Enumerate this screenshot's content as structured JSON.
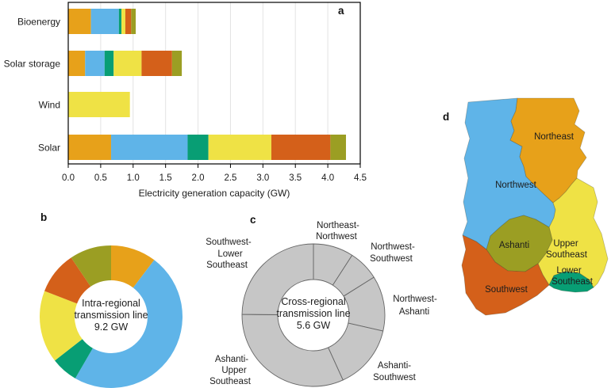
{
  "figure": {
    "background": "#ffffff",
    "panel_labels": {
      "a": "a",
      "b": "b",
      "c": "c",
      "d": "d"
    }
  },
  "palette": {
    "Northeast": "#E7A11A",
    "Northwest": "#5FB4E8",
    "Ashanti": "#9B9E23",
    "Upper Southeast": "#EFE245",
    "Lower Southeast": "#089E74",
    "Southwest": "#D4601A",
    "cross_regional_fill": "#C6C6C6",
    "cross_regional_border": "#666666"
  },
  "chart_data": [
    {
      "id": "a",
      "type": "bar",
      "orientation": "horizontal",
      "stacked": true,
      "categories": [
        "Bioenergy",
        "Solar storage",
        "Wind",
        "Solar"
      ],
      "series": [
        {
          "name": "Northeast",
          "color": "#E7A11A",
          "values": [
            0.35,
            0.26,
            0,
            0.66
          ]
        },
        {
          "name": "Northwest",
          "color": "#5FB4E8",
          "values": [
            0.43,
            0.3,
            0,
            1.18
          ]
        },
        {
          "name": "Lower Southeast",
          "color": "#089E74",
          "values": [
            0.04,
            0.14,
            0,
            0.32
          ]
        },
        {
          "name": "Upper Southeast",
          "color": "#EFE245",
          "values": [
            0.06,
            0.43,
            0.95,
            0.97
          ]
        },
        {
          "name": "Southwest",
          "color": "#D4601A",
          "values": [
            0.09,
            0.47,
            0,
            0.91
          ]
        },
        {
          "name": "Ashanti",
          "color": "#9B9E23",
          "values": [
            0.07,
            0.15,
            0,
            0.24
          ]
        }
      ],
      "category_totals_gw": [
        1.04,
        1.75,
        0.95,
        4.28
      ],
      "xlabel": "Electricity generation capacity (GW)",
      "xlim": [
        0,
        4.5
      ],
      "xticks": [
        "0.0",
        "0.5",
        "1.0",
        "1.5",
        "2.0",
        "2.5",
        "3.0",
        "3.5",
        "4.0",
        "4.5"
      ],
      "grid": true,
      "legend": "none"
    },
    {
      "id": "b",
      "type": "pie",
      "donut": true,
      "center_label": "Intra-regional transmission line 9.2 GW",
      "center_label_lines": [
        "Intra-regional",
        "transmission line",
        "9.2 GW"
      ],
      "total_gw": 9.2,
      "segments": [
        {
          "name": "Northeast",
          "color": "#E7A11A",
          "value_gw": 0.95
        },
        {
          "name": "Northwest",
          "color": "#5FB4E8",
          "value_gw": 4.42
        },
        {
          "name": "Lower Southeast",
          "color": "#089E74",
          "value_gw": 0.56
        },
        {
          "name": "Upper Southeast",
          "color": "#EFE245",
          "value_gw": 1.51
        },
        {
          "name": "Southwest",
          "color": "#D4601A",
          "value_gw": 0.89
        },
        {
          "name": "Ashanti",
          "color": "#9B9E23",
          "value_gw": 0.87
        }
      ]
    },
    {
      "id": "c",
      "type": "pie",
      "donut": true,
      "center_label": "Cross-regional transmission line 5.6 GW",
      "center_label_lines": [
        "Cross-regional",
        "transmission line",
        "5.6 GW"
      ],
      "total_gw": 5.6,
      "segments": [
        {
          "label": "Northeast-Northwest",
          "label_lines": [
            "Northeast-",
            "Northwest"
          ],
          "value_gw": 0.51
        },
        {
          "label": "Northwest-Southwest",
          "label_lines": [
            "Northwest-",
            "Southwest"
          ],
          "value_gw": 0.39
        },
        {
          "label": "Northwest-Ashanti",
          "label_lines": [
            "Northwest-",
            "Ashanti"
          ],
          "value_gw": 0.7
        },
        {
          "label": "Ashanti-Southwest",
          "label_lines": [
            "Ashanti-",
            "Southwest"
          ],
          "value_gw": 0.82
        },
        {
          "label": "Ashanti-Upper Southeast",
          "label_lines": [
            "Ashanti-",
            "Upper",
            "Southeast"
          ],
          "value_gw": 1.79
        },
        {
          "label": "Southwest-Lower Southeast",
          "label_lines": [
            "Southwest-",
            "Lower",
            "Southeast"
          ],
          "value_gw": 1.39
        }
      ]
    },
    {
      "id": "d",
      "type": "map",
      "regions": [
        {
          "name": "Northwest",
          "color": "#5FB4E8",
          "label_lines": [
            "Northwest"
          ]
        },
        {
          "name": "Northeast",
          "color": "#E7A11A",
          "label_lines": [
            "Northeast"
          ]
        },
        {
          "name": "Upper Southeast",
          "color": "#EFE245",
          "label_lines": [
            "Upper",
            "Southeast"
          ]
        },
        {
          "name": "Ashanti",
          "color": "#9B9E23",
          "label_lines": [
            "Ashanti"
          ]
        },
        {
          "name": "Southwest",
          "color": "#D4601A",
          "label_lines": [
            "Southwest"
          ]
        },
        {
          "name": "Lower Southeast",
          "color": "#089E74",
          "label_lines": [
            "Lower",
            "Southeast"
          ]
        }
      ]
    }
  ]
}
